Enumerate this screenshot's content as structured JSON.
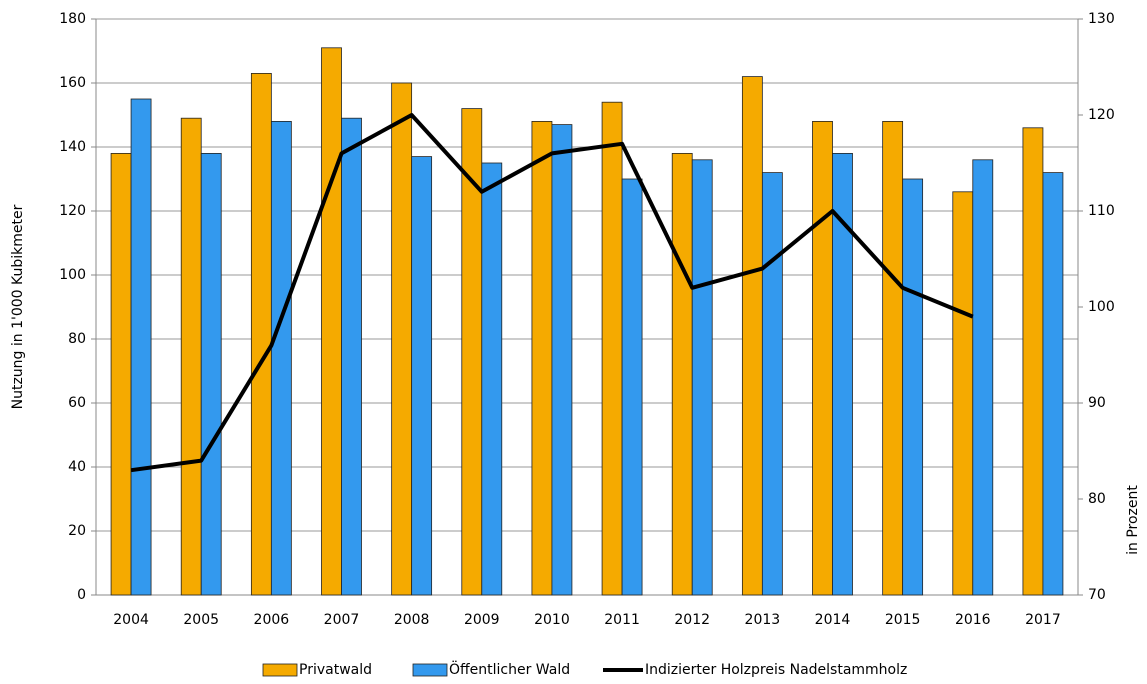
{
  "chart_data": {
    "type": "bar",
    "y_label": "Nutzung in 1'000 Kubikmeter",
    "y2_label": "in Prozent",
    "categories": [
      "2004",
      "2005",
      "2006",
      "2007",
      "2008",
      "2009",
      "2010",
      "2011",
      "2012",
      "2013",
      "2014",
      "2015",
      "2016",
      "2017"
    ],
    "series": [
      {
        "name": "Privatwald",
        "type": "bar",
        "color": "#f5aa00",
        "values": [
          138,
          149,
          163,
          171,
          160,
          152,
          148,
          154,
          138,
          162,
          148,
          148,
          126,
          146
        ]
      },
      {
        "name": "Öffentlicher Wald",
        "type": "bar",
        "color": "#3399ee",
        "values": [
          155,
          138,
          148,
          149,
          137,
          135,
          147,
          130,
          136,
          132,
          138,
          130,
          136,
          132
        ]
      },
      {
        "name": "Indizierter Holzpreis Nadelstammholz",
        "type": "line",
        "axis": "y2",
        "color": "#000000",
        "values": [
          83,
          84,
          96,
          116,
          120,
          112,
          116,
          117,
          102,
          104,
          110,
          102,
          99,
          null
        ]
      }
    ],
    "ylim": [
      0,
      180
    ],
    "yticks": [
      0,
      20,
      40,
      60,
      80,
      100,
      120,
      140,
      160,
      180
    ],
    "y2lim": [
      70,
      130
    ],
    "y2ticks": [
      70,
      80,
      90,
      100,
      110,
      120,
      130
    ],
    "grid": true,
    "legend": "bottom"
  }
}
